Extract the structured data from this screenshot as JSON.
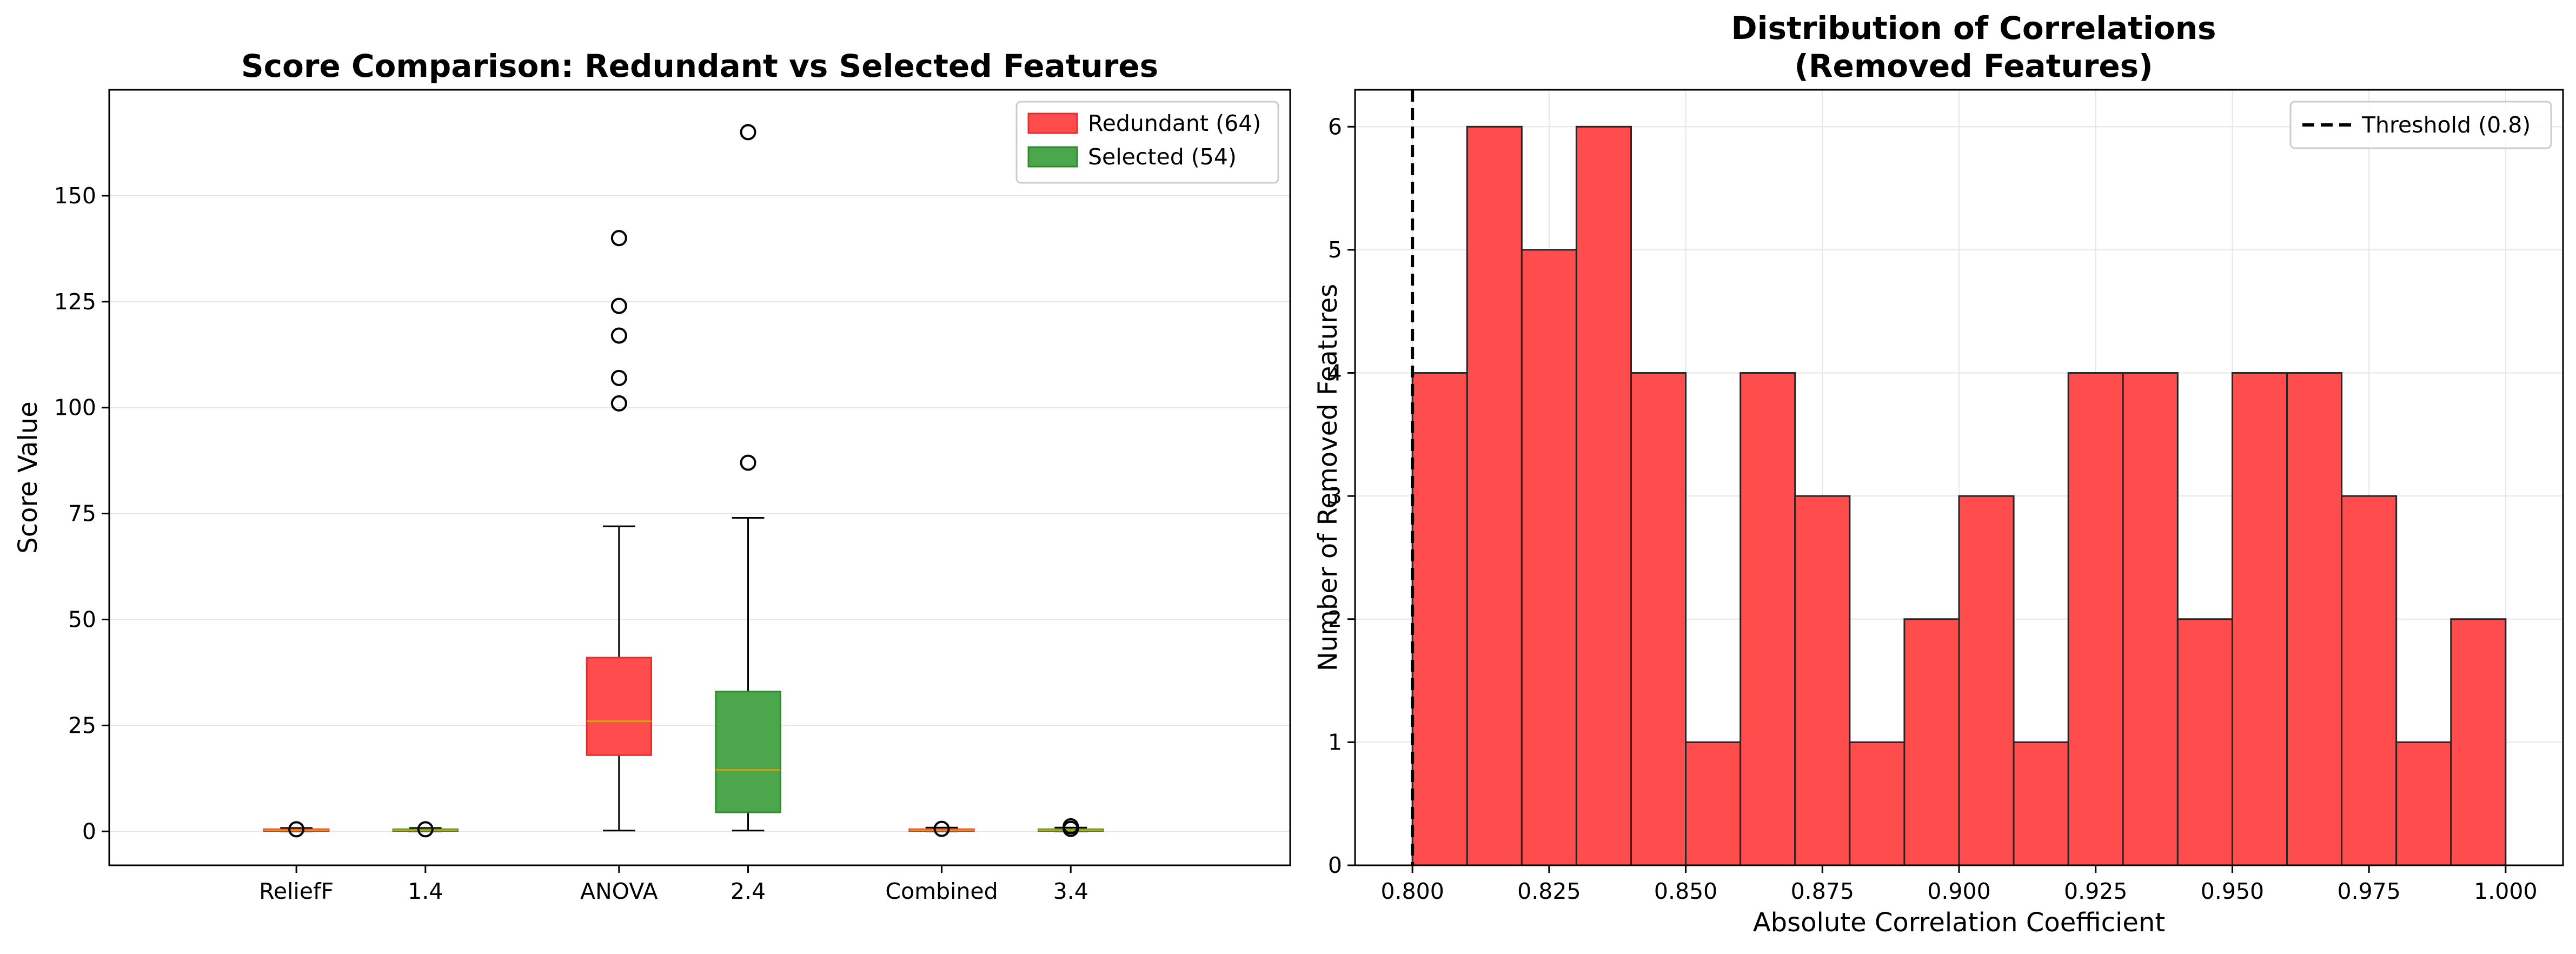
{
  "chart_data": [
    {
      "type": "box",
      "title": "Score Comparison: Redundant vs Selected Features",
      "xlabel": "",
      "ylabel": "Score Value",
      "ylim": [
        -8,
        175
      ],
      "yticks": [
        0,
        25,
        50,
        75,
        100,
        125,
        150
      ],
      "grid": "y",
      "legend_position": "top-right",
      "x_ticks": [
        {
          "pos": 1.0,
          "label": "ReliefF"
        },
        {
          "pos": 1.4,
          "label": "1.4"
        },
        {
          "pos": 2.0,
          "label": "ANOVA"
        },
        {
          "pos": 2.4,
          "label": "2.4"
        },
        {
          "pos": 3.0,
          "label": "Combined"
        },
        {
          "pos": 3.4,
          "label": "3.4"
        }
      ],
      "xlim": [
        0.42,
        4.08
      ],
      "series": [
        {
          "name": "Redundant (64)",
          "color": "#ff4d4d",
          "edge": "#e03030",
          "boxes": [
            {
              "pos": 1.0,
              "q1": 0.1,
              "median": 0.3,
              "q3": 0.5,
              "whislo": 0.0,
              "whishi": 0.8,
              "fliers": [
                0.5
              ]
            },
            {
              "pos": 2.0,
              "q1": 18,
              "median": 26,
              "q3": 41,
              "whislo": 0.2,
              "whishi": 72,
              "fliers": [
                101,
                107,
                117,
                124,
                140
              ]
            },
            {
              "pos": 3.0,
              "q1": 0.1,
              "median": 0.3,
              "q3": 0.5,
              "whislo": 0.0,
              "whishi": 0.9,
              "fliers": [
                0.6
              ]
            }
          ]
        },
        {
          "name": "Selected (54)",
          "color": "#4ca64c",
          "edge": "#2e8b2e",
          "boxes": [
            {
              "pos": 1.4,
              "q1": 0.1,
              "median": 0.3,
              "q3": 0.5,
              "whislo": 0.0,
              "whishi": 0.8,
              "fliers": [
                0.5
              ]
            },
            {
              "pos": 2.4,
              "q1": 4.5,
              "median": 14.5,
              "q3": 33,
              "whislo": 0.2,
              "whishi": 74,
              "fliers": [
                87,
                165
              ]
            },
            {
              "pos": 3.4,
              "q1": 0.1,
              "median": 0.3,
              "q3": 0.5,
              "whislo": 0.0,
              "whishi": 0.9,
              "fliers": [
                0.6,
                1.2
              ]
            }
          ]
        }
      ],
      "median_color": "#d4a017"
    },
    {
      "type": "histogram",
      "title": "Distribution of Correlations\n(Removed Features)",
      "title_lines": [
        "Distribution of Correlations",
        "(Removed Features)"
      ],
      "xlabel": "Absolute Correlation Coefficient",
      "ylabel": "Number of Removed Features",
      "xlim": [
        0.7895,
        1.0105
      ],
      "ylim": [
        0,
        6.3
      ],
      "xticks": [
        "0.800",
        "0.825",
        "0.850",
        "0.875",
        "0.900",
        "0.925",
        "0.950",
        "0.975",
        "1.000"
      ],
      "yticks": [
        "0",
        "1",
        "2",
        "3",
        "4",
        "5",
        "6"
      ],
      "grid": "both",
      "legend_position": "top-right",
      "bar_color": "#ff4d4d",
      "bin_start": 0.8,
      "bin_width": 0.01,
      "values": [
        4,
        6,
        5,
        6,
        4,
        1,
        4,
        3,
        1,
        2,
        3,
        1,
        4,
        4,
        2,
        4,
        4,
        3,
        1,
        2
      ],
      "threshold": {
        "value": 0.8,
        "label": "Threshold (0.8)"
      }
    }
  ]
}
